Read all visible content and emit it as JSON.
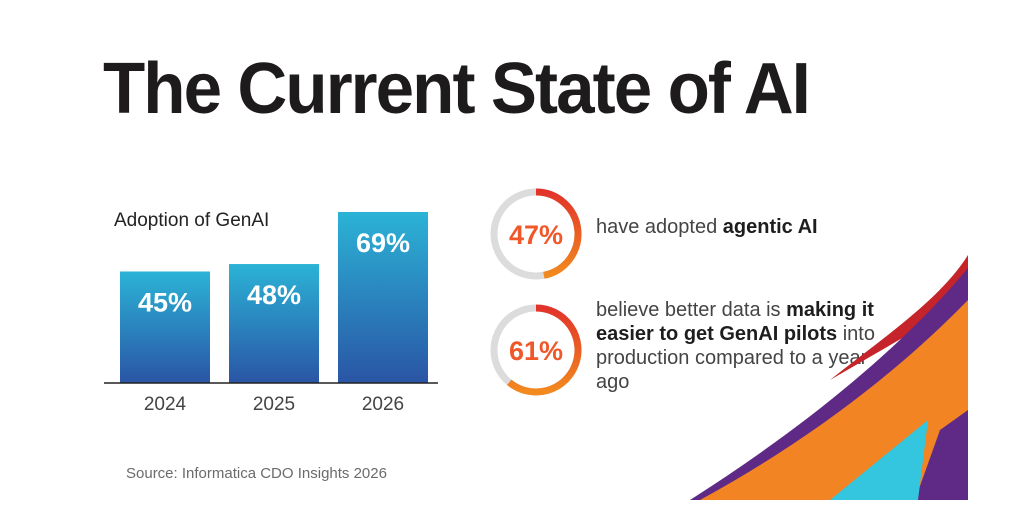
{
  "page": {
    "title": "The Current State of AI",
    "source": "Source: Informatica CDO Insights 2026"
  },
  "chart_data": {
    "type": "bar",
    "title": "Adoption of GenAI",
    "categories": [
      "2024",
      "2025",
      "2026"
    ],
    "values": [
      45,
      48,
      69
    ],
    "value_labels": [
      "45%",
      "48%",
      "69%"
    ],
    "unit": "%",
    "xlabel": "",
    "ylabel": "",
    "ylim": [
      0,
      69
    ],
    "grid": false,
    "legend": "none",
    "colors": {
      "bar_top": "#2bb3d6",
      "bar_bottom": "#2a55a5",
      "label": "#ffffff"
    }
  },
  "stats": [
    {
      "value": 47,
      "label": "47%",
      "text_parts": [
        {
          "text": "have adopted ",
          "bold": false
        },
        {
          "text": "agentic AI",
          "bold": true
        }
      ]
    },
    {
      "value": 61,
      "label": "61%",
      "text_parts": [
        {
          "text": "believe better data is ",
          "bold": false
        },
        {
          "text": "making it easier to get GenAI pilots",
          "bold": true
        },
        {
          "text": " into production compared to a year ago",
          "bold": false
        }
      ]
    }
  ],
  "colors": {
    "ring_start": "#e2332a",
    "ring_end": "#f28a1f",
    "ring_track": "#dcdcdc",
    "ring_text": "#f0582a",
    "swoosh_orange": "#f28424",
    "swoosh_purple": "#5e2a86",
    "swoosh_red": "#c6242b",
    "swoosh_cyan": "#33c6de"
  }
}
